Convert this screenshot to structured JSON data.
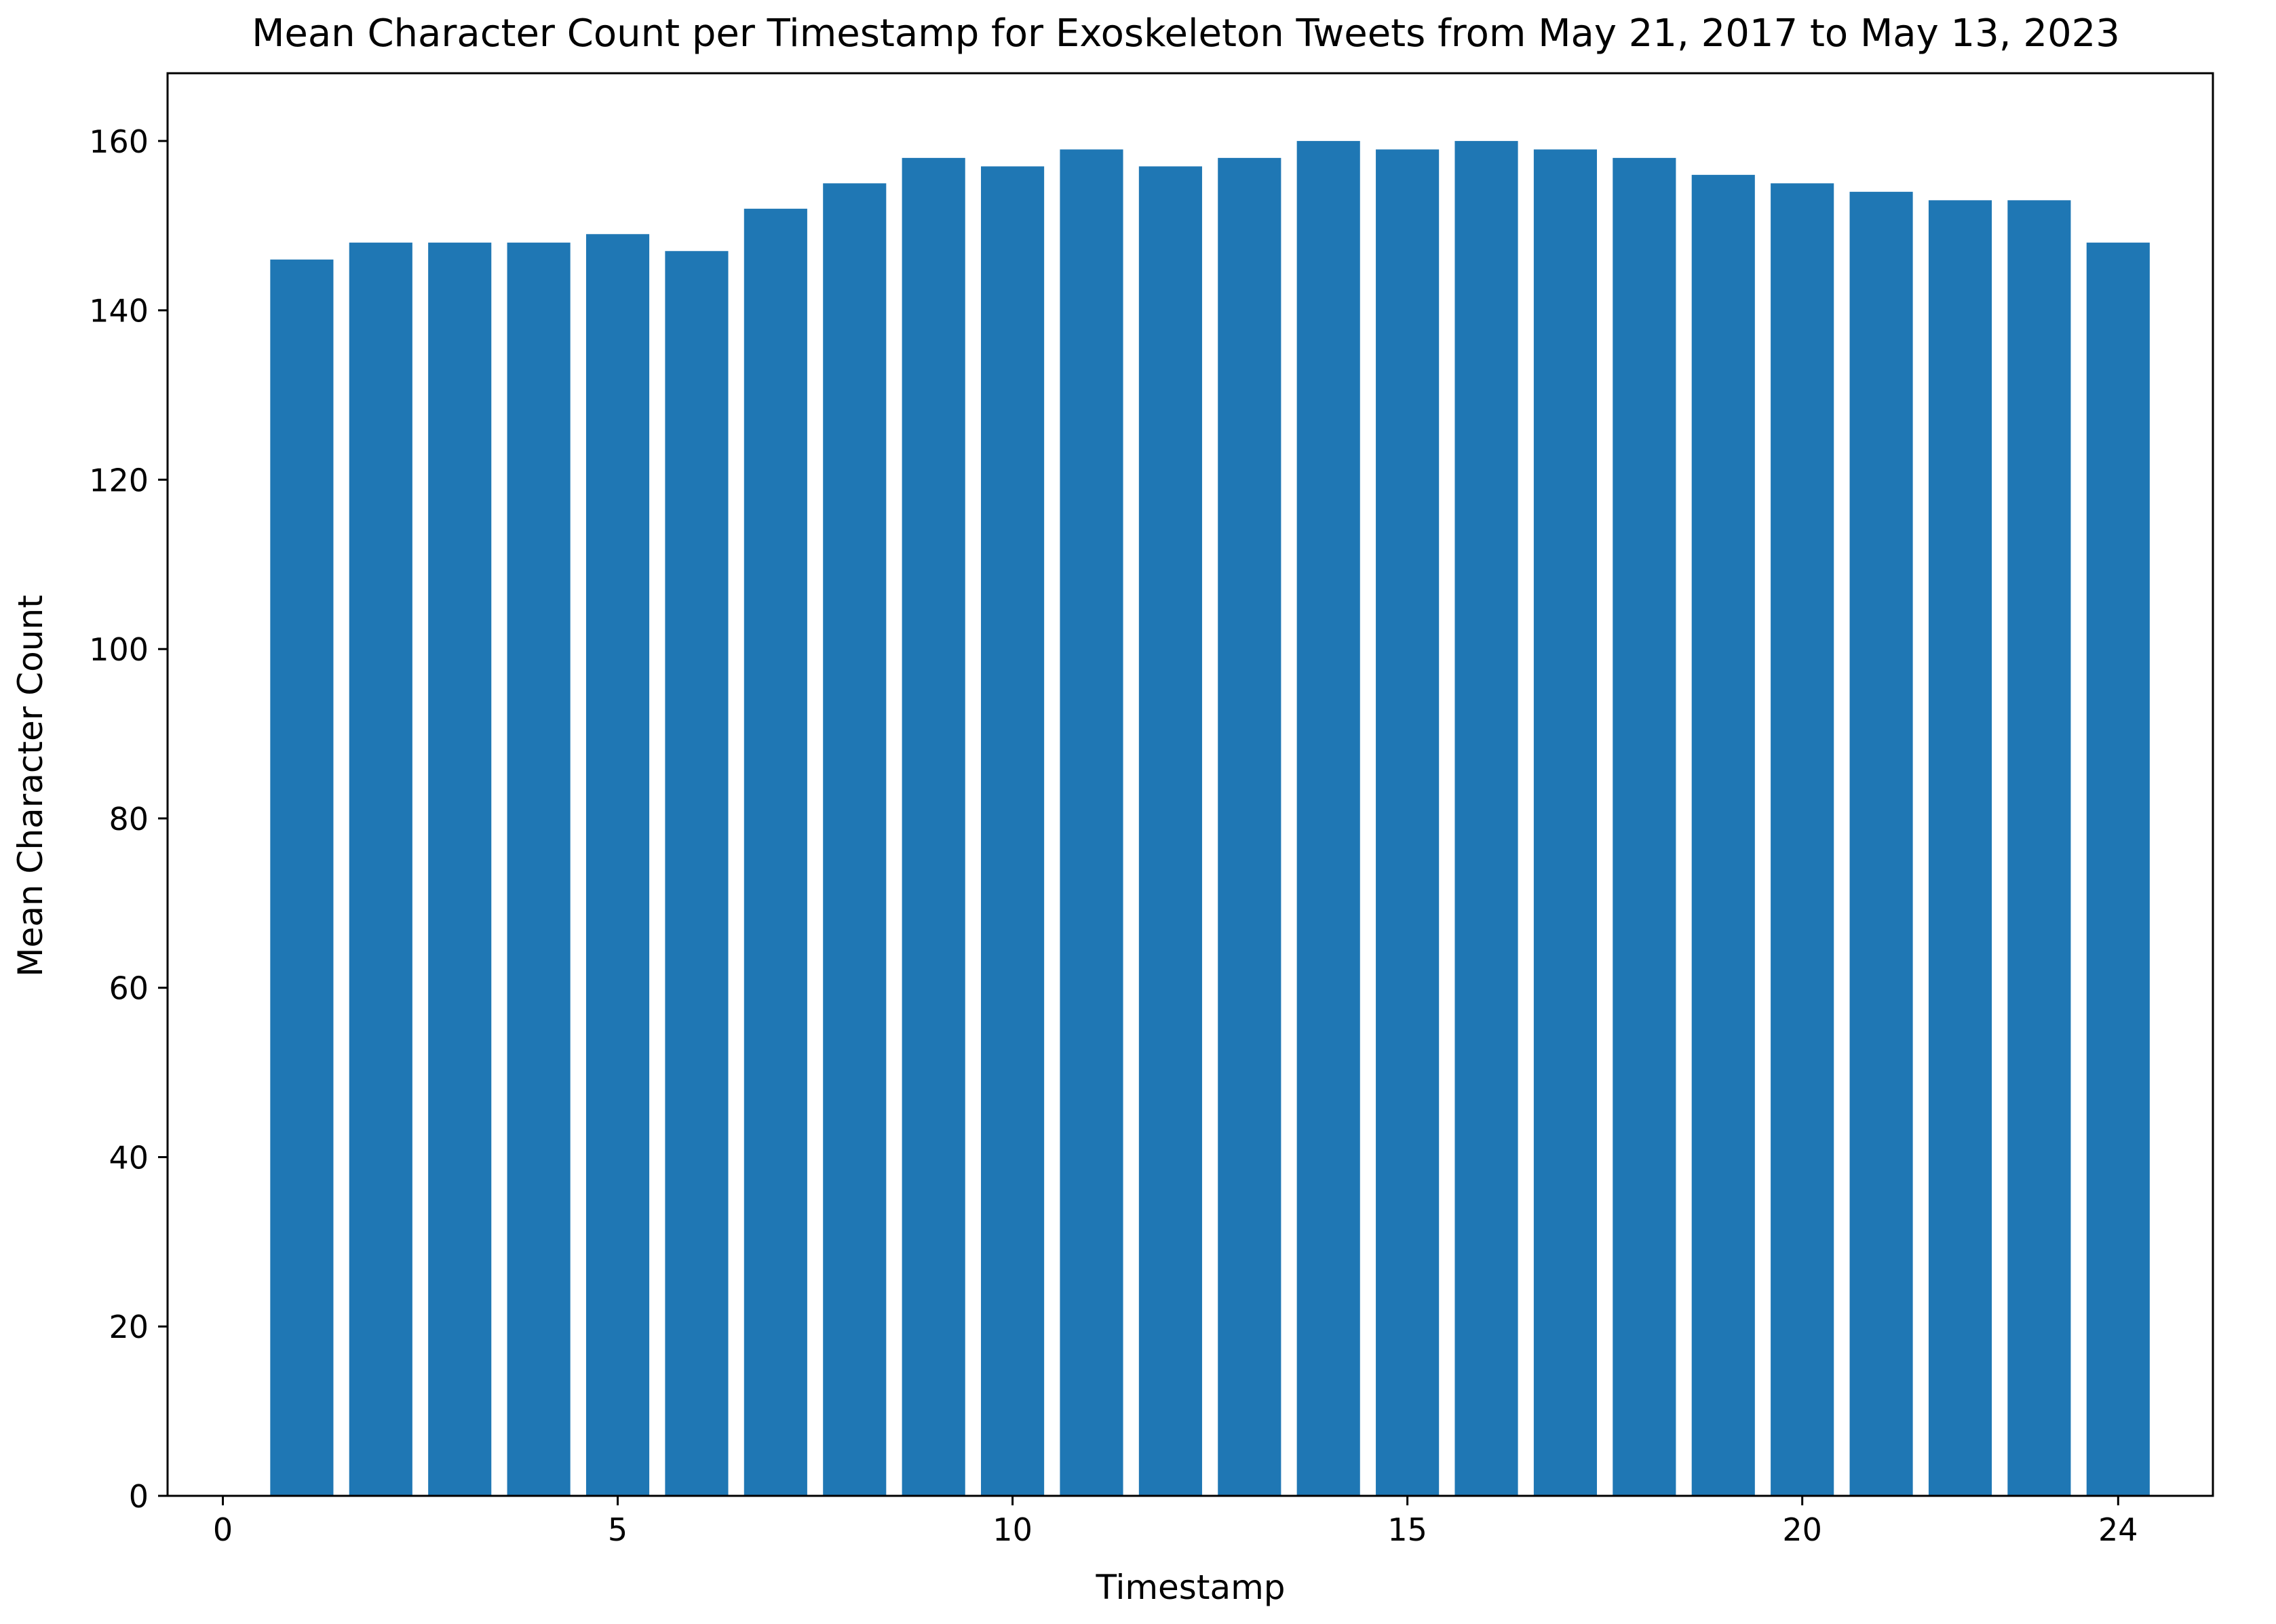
{
  "chart_data": {
    "type": "bar",
    "title": "Mean Character Count per Timestamp for Exoskeleton Tweets from May 21, 2017 to May 13, 2023",
    "xlabel": "Timestamp",
    "ylabel": "Mean Character Count",
    "x": [
      1,
      2,
      3,
      4,
      5,
      6,
      7,
      8,
      9,
      10,
      11,
      12,
      13,
      14,
      15,
      16,
      17,
      18,
      19,
      20,
      21,
      22,
      23,
      24
    ],
    "values": [
      146,
      148,
      148,
      148,
      149,
      147,
      152,
      155,
      158,
      157,
      159,
      157,
      158,
      160,
      159,
      160,
      159,
      158,
      156,
      155,
      154,
      153,
      153,
      148
    ],
    "xlim": [
      -0.7,
      25.2
    ],
    "ylim": [
      0,
      168
    ],
    "xticks": [
      0,
      5,
      10,
      15,
      20,
      24
    ],
    "xtick_labels": [
      "0",
      "5",
      "10",
      "15",
      "20",
      "24"
    ],
    "yticks": [
      0,
      20,
      40,
      60,
      80,
      100,
      120,
      140,
      160
    ],
    "ytick_labels": [
      "0",
      "20",
      "40",
      "60",
      "80",
      "100",
      "120",
      "140",
      "160"
    ],
    "bar_color": "#1f77b4",
    "grid": false,
    "legend": "none"
  }
}
